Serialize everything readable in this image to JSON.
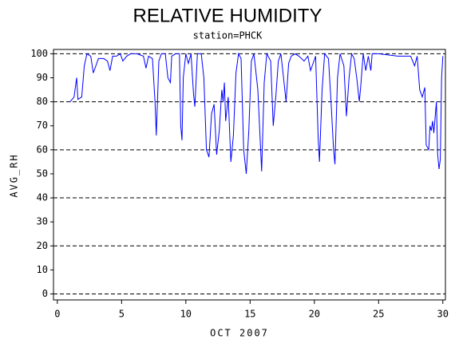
{
  "chart_data": {
    "type": "line",
    "title": "RELATIVE HUMIDITY",
    "subtitle": "station=PHCK",
    "x_label": "OCT 2007",
    "y_label": "AVG_RH",
    "xlim": [
      -0.3,
      30.2
    ],
    "ylim": [
      -2.5,
      101.8
    ],
    "xticks": [
      0,
      5,
      10,
      15,
      20,
      25,
      30
    ],
    "yticks": [
      0,
      10,
      20,
      30,
      40,
      50,
      60,
      70,
      80,
      90,
      100
    ],
    "grid": true,
    "series": [
      {
        "name": "AVG_RH",
        "color": "#0000ff",
        "x": [
          1.0,
          1.3,
          1.5,
          1.6,
          1.9,
          2.1,
          2.3,
          2.6,
          2.8,
          3.0,
          3.2,
          3.6,
          3.9,
          4.1,
          4.3,
          4.6,
          4.9,
          5.1,
          5.4,
          5.7,
          6.2,
          6.7,
          6.9,
          7.1,
          7.4,
          7.6,
          7.7,
          7.9,
          8.1,
          8.4,
          8.6,
          8.8,
          8.9,
          9.2,
          9.5,
          9.6,
          9.7,
          9.8,
          10.0,
          10.2,
          10.4,
          10.6,
          10.7,
          10.9,
          11.2,
          11.4,
          11.6,
          11.8,
          12.0,
          12.2,
          12.4,
          12.6,
          12.8,
          12.9,
          13.0,
          13.1,
          13.3,
          13.5,
          13.7,
          13.9,
          14.1,
          14.3,
          14.5,
          14.7,
          14.9,
          15.1,
          15.3,
          15.6,
          15.9,
          16.1,
          16.3,
          16.6,
          16.8,
          17.0,
          17.2,
          17.4,
          17.6,
          17.8,
          18.0,
          18.2,
          18.5,
          18.8,
          19.2,
          19.5,
          19.7,
          19.9,
          20.1,
          20.3,
          20.4,
          20.6,
          20.8,
          21.1,
          21.3,
          21.5,
          21.6,
          21.8,
          22.0,
          22.3,
          22.5,
          22.7,
          22.9,
          23.1,
          23.3,
          23.5,
          23.6,
          23.8,
          24.0,
          24.2,
          24.4,
          24.5,
          25.0,
          26.5,
          27.5,
          27.8,
          28.0,
          28.2,
          28.4,
          28.6,
          28.7,
          28.9,
          29.0,
          29.1,
          29.2,
          29.3,
          29.5,
          29.6,
          29.7,
          29.8,
          29.9,
          30.0
        ],
        "values": [
          80,
          82,
          90,
          81,
          82,
          95,
          100,
          99,
          92,
          95,
          98,
          98,
          97,
          93,
          99,
          99,
          100,
          97,
          99,
          100,
          100,
          99,
          94,
          99,
          98,
          80,
          66,
          97,
          100,
          100,
          90,
          88,
          99,
          100,
          100,
          70,
          64,
          90,
          100,
          96,
          100,
          83,
          78,
          100,
          100,
          90,
          60,
          57,
          75,
          79,
          58,
          68,
          85,
          80,
          88,
          72,
          82,
          55,
          66,
          92,
          100,
          98,
          60,
          50,
          68,
          97,
          100,
          85,
          51,
          88,
          100,
          97,
          70,
          82,
          97,
          100,
          90,
          80,
          96,
          99,
          100,
          99,
          97,
          99,
          93,
          96,
          99,
          65,
          55,
          85,
          100,
          98,
          80,
          60,
          54,
          90,
          100,
          95,
          74,
          90,
          100,
          98,
          90,
          80,
          86,
          100,
          93,
          99,
          93,
          100,
          100,
          99,
          99,
          95,
          99,
          85,
          82,
          86,
          62,
          60,
          70,
          68,
          72,
          67,
          80,
          58,
          52,
          56,
          90,
          99
        ]
      }
    ]
  }
}
